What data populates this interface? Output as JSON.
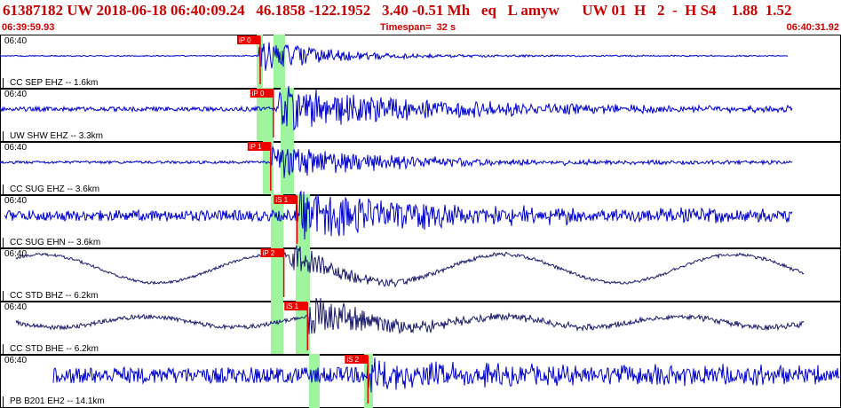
{
  "header": {
    "title": "61387182 UW 2018-06-18 06:40:09.24   46.1858 -122.1952   3.40 -0.51 Mh   eq   L amyw      UW 01  H   2  -  H S4    1.88  1.52",
    "start_time": "06:39:59.93",
    "timespan": "Timespan=  32 s",
    "end_time": "06:40:31.92"
  },
  "colors": {
    "trace_blue": "#0000cc",
    "trace_dark": "#1a1a6e",
    "pick_red": "#ee0000",
    "window_green": "#9ef59e",
    "header_red": "#cc0000"
  },
  "panels": [
    {
      "time": "06:40",
      "station": "CC SEP EHZ -- 1.6km",
      "color": "#0000cc",
      "picks": [
        {
          "label": "iP 0",
          "t": 9.9
        }
      ]
    },
    {
      "time": "06:40",
      "station": "UW SHW EHZ -- 3.3km",
      "color": "#0000cc",
      "picks": [
        {
          "label": "iP 0",
          "t": 10.4
        }
      ]
    },
    {
      "time": "06:40",
      "station": "CC SUG EHZ -- 3.6km",
      "color": "#0000cc",
      "picks": [
        {
          "label": "iP 1",
          "t": 10.3
        }
      ]
    },
    {
      "time": "06:40",
      "station": "CC SUG EHN -- 3.6km",
      "color": "#0000cc",
      "picks": [
        {
          "label": "iS 1",
          "t": 11.3
        }
      ]
    },
    {
      "time": "06:40",
      "station": "CC STD BHZ -- 6.2km",
      "color": "#1a1a6e",
      "picks": [
        {
          "label": "iP 2",
          "t": 10.8
        }
      ]
    },
    {
      "time": "06:40",
      "station": "CC STD BHE -- 6.2km",
      "color": "#1a1a6e",
      "picks": [
        {
          "label": "iS 1",
          "t": 11.7
        }
      ]
    },
    {
      "time": "06:40",
      "station": "PB B201 EH2 -- 14.1km",
      "color": "#0000cc",
      "picks": [
        {
          "label": "iS 2",
          "t": 14.0
        }
      ]
    }
  ]
}
